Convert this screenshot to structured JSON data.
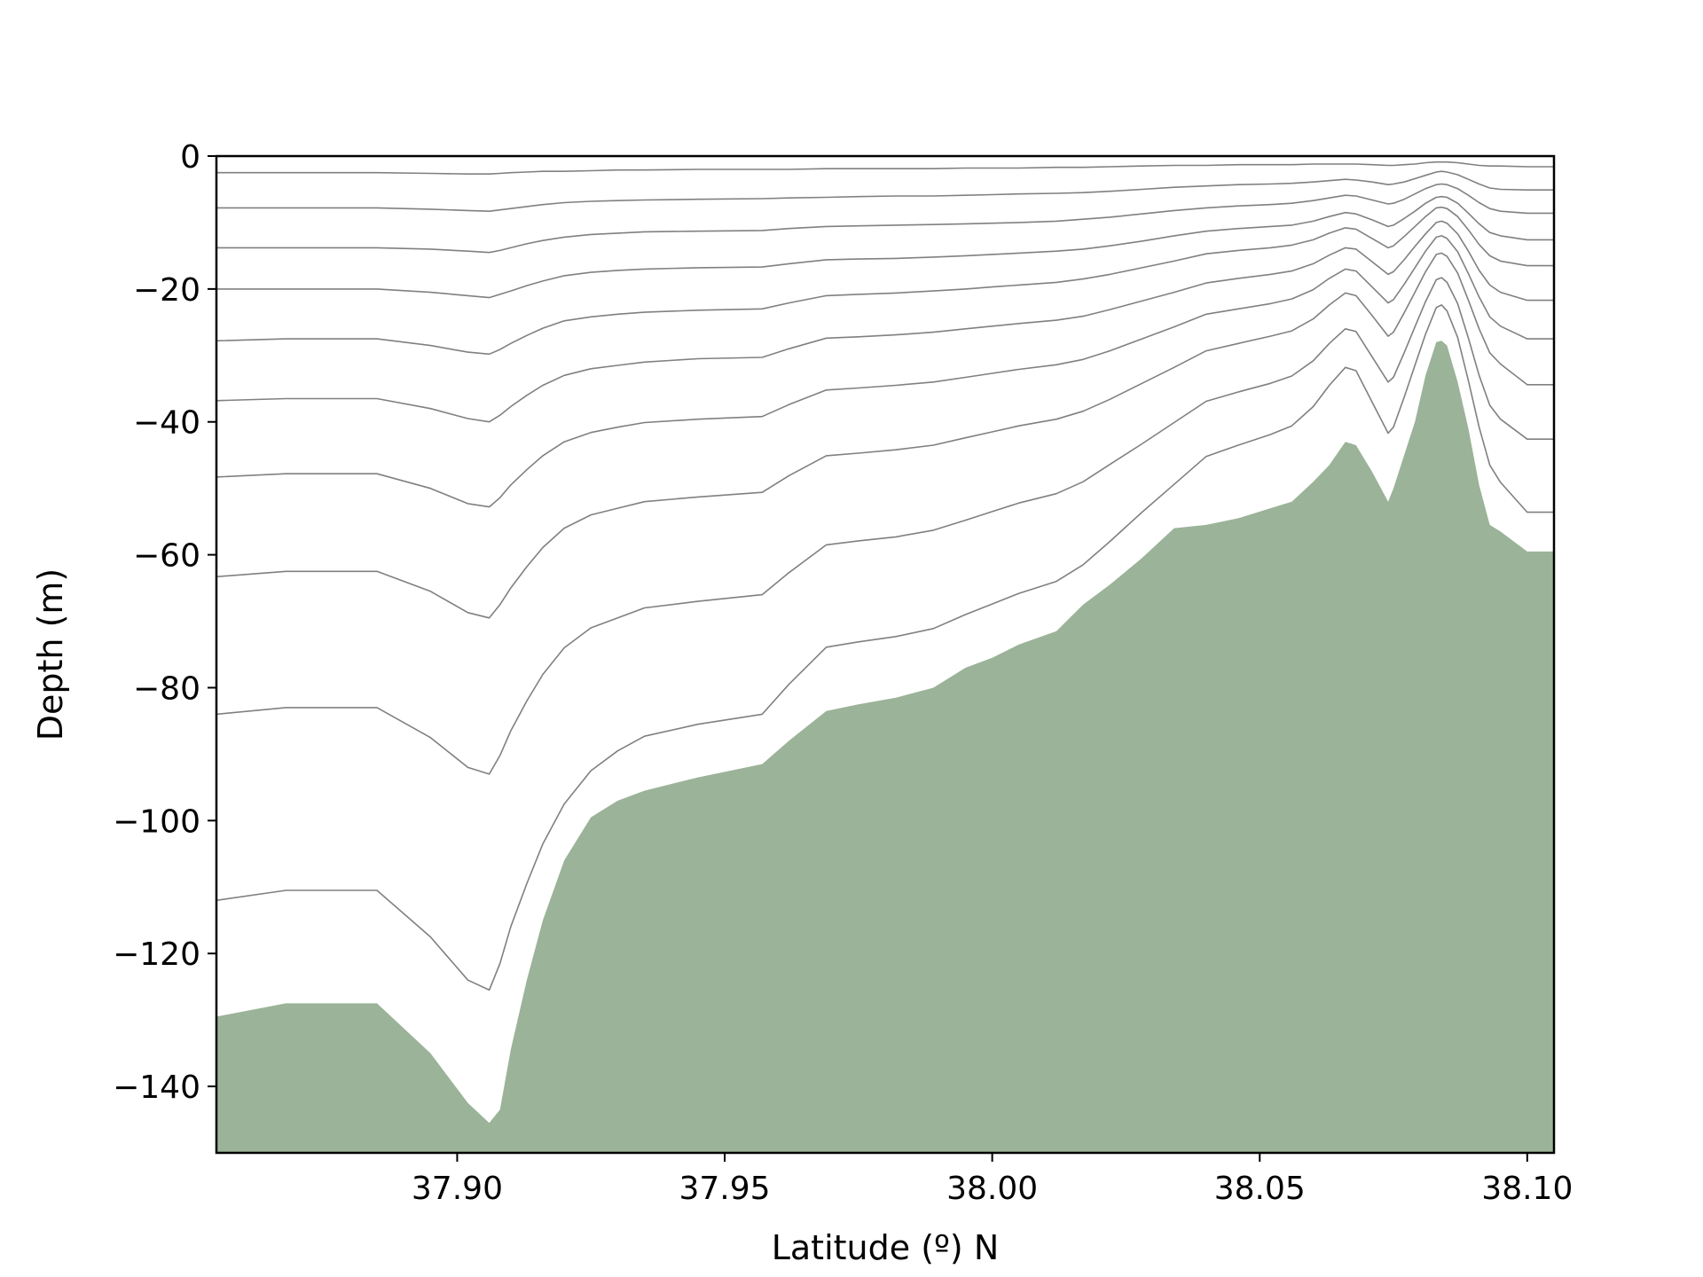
{
  "chart_data": {
    "type": "area",
    "title": "",
    "xlabel": "Latitude (º) N",
    "ylabel": "Depth (m)",
    "xlim": [
      37.855,
      38.105
    ],
    "ylim": [
      -150,
      0
    ],
    "x_ticks": [
      37.9,
      37.95,
      38.0,
      38.05,
      38.1
    ],
    "x_tick_labels": [
      "37.90",
      "37.95",
      "38.00",
      "38.05",
      "38.10"
    ],
    "y_ticks": [
      0,
      -20,
      -40,
      -60,
      -80,
      -100,
      -120,
      -140
    ],
    "y_tick_labels": [
      "0",
      "−20",
      "−40",
      "−60",
      "−80",
      "−100",
      "−120",
      "−140"
    ],
    "grid": false,
    "colors": {
      "bathymetry_fill": "#9bb398",
      "layer_lines": "#808080",
      "axes": "#000000"
    },
    "x": [
      37.855,
      37.868,
      37.885,
      37.895,
      37.902,
      37.906,
      37.908,
      37.91,
      37.913,
      37.916,
      37.92,
      37.925,
      37.93,
      37.935,
      37.945,
      37.957,
      37.962,
      37.969,
      37.975,
      37.982,
      37.989,
      37.995,
      38.0,
      38.005,
      38.012,
      38.017,
      38.022,
      38.028,
      38.034,
      38.04,
      38.046,
      38.052,
      38.056,
      38.06,
      38.063,
      38.066,
      38.068,
      38.071,
      38.074,
      38.075,
      38.077,
      38.079,
      38.081,
      38.083,
      38.084,
      38.085,
      38.087,
      38.089,
      38.091,
      38.093,
      38.095,
      38.1,
      38.105
    ],
    "bathymetry": [
      -129.5,
      -127.5,
      -127.5,
      -135.0,
      -142.5,
      -145.5,
      -143.5,
      -134.5,
      -124.0,
      -115.0,
      -106.0,
      -99.5,
      -97.0,
      -95.5,
      -93.5,
      -91.5,
      -88.0,
      -83.5,
      -82.5,
      -81.5,
      -80.0,
      -77.0,
      -75.5,
      -73.5,
      -71.5,
      -67.5,
      -64.5,
      -60.5,
      -56.0,
      -55.5,
      -54.5,
      -53.0,
      -52.0,
      -49.0,
      -46.5,
      -43.0,
      -43.5,
      -47.5,
      -52.0,
      -50.0,
      -45.0,
      -40.0,
      -33.0,
      -28.0,
      -27.8,
      -28.5,
      -34.0,
      -41.0,
      -49.5,
      -55.5,
      -56.5,
      -59.5,
      -59.5
    ],
    "series": [
      {
        "values": [
          -2.5,
          -2.5,
          -2.5,
          -2.6,
          -2.7,
          -2.7,
          -2.6,
          -2.5,
          -2.4,
          -2.3,
          -2.3,
          -2.2,
          -2.1,
          -2.1,
          -2.0,
          -2.0,
          -2.0,
          -1.9,
          -1.9,
          -1.9,
          -1.9,
          -1.8,
          -1.8,
          -1.8,
          -1.7,
          -1.7,
          -1.6,
          -1.5,
          -1.4,
          -1.4,
          -1.3,
          -1.3,
          -1.3,
          -1.2,
          -1.2,
          -1.2,
          -1.2,
          -1.3,
          -1.4,
          -1.4,
          -1.3,
          -1.2,
          -1.0,
          -0.9,
          -0.9,
          -0.9,
          -1.0,
          -1.2,
          -1.4,
          -1.5,
          -1.5,
          -1.6,
          -1.6
        ]
      },
      {
        "values": [
          -7.8,
          -7.8,
          -7.8,
          -8.0,
          -8.2,
          -8.3,
          -8.1,
          -7.9,
          -7.6,
          -7.3,
          -7.0,
          -6.8,
          -6.7,
          -6.6,
          -6.5,
          -6.4,
          -6.3,
          -6.2,
          -6.1,
          -6.0,
          -6.0,
          -5.9,
          -5.8,
          -5.7,
          -5.6,
          -5.5,
          -5.3,
          -5.0,
          -4.7,
          -4.5,
          -4.3,
          -4.2,
          -4.1,
          -3.9,
          -3.7,
          -3.5,
          -3.6,
          -3.9,
          -4.3,
          -4.2,
          -3.9,
          -3.4,
          -2.9,
          -2.4,
          -2.3,
          -2.4,
          -2.8,
          -3.5,
          -4.2,
          -4.8,
          -5.0,
          -5.1,
          -5.1
        ]
      },
      {
        "values": [
          -13.8,
          -13.8,
          -13.8,
          -14.0,
          -14.3,
          -14.5,
          -14.2,
          -13.8,
          -13.2,
          -12.7,
          -12.2,
          -11.8,
          -11.6,
          -11.4,
          -11.3,
          -11.2,
          -10.9,
          -10.6,
          -10.5,
          -10.4,
          -10.3,
          -10.2,
          -10.1,
          -10.0,
          -9.8,
          -9.5,
          -9.2,
          -8.7,
          -8.2,
          -7.8,
          -7.5,
          -7.3,
          -7.1,
          -6.7,
          -6.3,
          -5.9,
          -6.0,
          -6.6,
          -7.2,
          -7.1,
          -6.5,
          -5.7,
          -4.9,
          -4.3,
          -4.2,
          -4.3,
          -4.9,
          -5.9,
          -7.0,
          -7.9,
          -8.3,
          -8.6,
          -8.6
        ]
      },
      {
        "values": [
          -20.0,
          -20.0,
          -20.0,
          -20.5,
          -21.0,
          -21.3,
          -20.8,
          -20.3,
          -19.5,
          -18.8,
          -18.0,
          -17.5,
          -17.2,
          -17.0,
          -16.8,
          -16.7,
          -16.2,
          -15.6,
          -15.5,
          -15.4,
          -15.2,
          -15.0,
          -14.8,
          -14.6,
          -14.3,
          -14.0,
          -13.5,
          -12.8,
          -12.0,
          -11.3,
          -10.9,
          -10.6,
          -10.4,
          -9.8,
          -9.1,
          -8.5,
          -8.7,
          -9.6,
          -10.6,
          -10.4,
          -9.4,
          -8.3,
          -7.1,
          -6.2,
          -6.1,
          -6.2,
          -7.1,
          -8.6,
          -10.2,
          -11.5,
          -12.0,
          -12.6,
          -12.6
        ]
      },
      {
        "values": [
          -27.8,
          -27.5,
          -27.5,
          -28.5,
          -29.5,
          -29.8,
          -29.1,
          -28.2,
          -27.0,
          -25.9,
          -24.8,
          -24.2,
          -23.8,
          -23.5,
          -23.2,
          -23.0,
          -22.1,
          -21.0,
          -20.8,
          -20.6,
          -20.3,
          -20.0,
          -19.7,
          -19.4,
          -19.0,
          -18.5,
          -17.8,
          -16.8,
          -15.8,
          -14.7,
          -14.2,
          -13.8,
          -13.4,
          -12.6,
          -11.6,
          -10.8,
          -11.0,
          -12.4,
          -13.8,
          -13.5,
          -12.1,
          -10.6,
          -9.1,
          -7.8,
          -7.7,
          -7.9,
          -9.1,
          -11.1,
          -13.3,
          -15.0,
          -15.8,
          -16.5,
          -16.5
        ]
      },
      {
        "values": [
          -36.8,
          -36.5,
          -36.5,
          -38.0,
          -39.5,
          -40.0,
          -39.0,
          -37.7,
          -36.0,
          -34.5,
          -33.0,
          -32.0,
          -31.5,
          -31.0,
          -30.5,
          -30.3,
          -29.0,
          -27.4,
          -27.2,
          -26.9,
          -26.5,
          -26.0,
          -25.6,
          -25.2,
          -24.7,
          -24.1,
          -23.1,
          -21.8,
          -20.5,
          -19.1,
          -18.4,
          -17.8,
          -17.3,
          -16.2,
          -14.9,
          -13.8,
          -14.0,
          -15.9,
          -17.8,
          -17.4,
          -15.6,
          -13.6,
          -11.7,
          -10.0,
          -9.8,
          -10.1,
          -11.7,
          -14.3,
          -17.2,
          -19.4,
          -20.5,
          -21.7,
          -21.7
        ]
      },
      {
        "values": [
          -48.3,
          -47.8,
          -47.8,
          -50.0,
          -52.3,
          -52.8,
          -51.4,
          -49.5,
          -47.2,
          -45.1,
          -43.0,
          -41.6,
          -40.8,
          -40.1,
          -39.6,
          -39.2,
          -37.4,
          -35.2,
          -34.9,
          -34.5,
          -34.0,
          -33.3,
          -32.7,
          -32.1,
          -31.4,
          -30.6,
          -29.3,
          -27.5,
          -25.7,
          -23.8,
          -23.0,
          -22.2,
          -21.5,
          -20.1,
          -18.4,
          -17.0,
          -17.3,
          -19.7,
          -22.1,
          -21.6,
          -19.3,
          -16.8,
          -14.3,
          -12.2,
          -12.0,
          -12.4,
          -14.4,
          -17.7,
          -21.2,
          -24.2,
          -25.6,
          -27.5,
          -27.5
        ]
      },
      {
        "values": [
          -63.3,
          -62.5,
          -62.5,
          -65.5,
          -68.7,
          -69.5,
          -67.5,
          -65.0,
          -61.8,
          -58.9,
          -56.0,
          -54.0,
          -53.0,
          -52.0,
          -51.3,
          -50.6,
          -48.1,
          -45.1,
          -44.7,
          -44.2,
          -43.5,
          -42.4,
          -41.5,
          -40.6,
          -39.6,
          -38.4,
          -36.6,
          -34.2,
          -31.8,
          -29.3,
          -28.2,
          -27.1,
          -26.3,
          -24.5,
          -22.4,
          -20.6,
          -21.0,
          -24.0,
          -27.1,
          -26.5,
          -23.6,
          -20.5,
          -17.4,
          -14.8,
          -14.6,
          -15.1,
          -17.6,
          -21.7,
          -26.0,
          -29.6,
          -31.3,
          -34.4,
          -34.4
        ]
      },
      {
        "values": [
          -84.0,
          -83.0,
          -83.0,
          -87.5,
          -92.0,
          -93.0,
          -90.2,
          -86.5,
          -82.0,
          -78.0,
          -74.0,
          -71.0,
          -69.5,
          -68.0,
          -67.0,
          -66.0,
          -62.7,
          -58.5,
          -57.9,
          -57.3,
          -56.3,
          -54.8,
          -53.5,
          -52.2,
          -50.8,
          -49.0,
          -46.4,
          -43.3,
          -40.1,
          -36.9,
          -35.5,
          -34.2,
          -33.1,
          -30.8,
          -28.2,
          -26.0,
          -26.4,
          -30.2,
          -34.0,
          -33.3,
          -29.6,
          -25.7,
          -21.9,
          -18.6,
          -18.3,
          -19.0,
          -22.2,
          -27.4,
          -33.0,
          -37.5,
          -39.6,
          -42.6,
          -42.6
        ]
      },
      {
        "values": [
          -112.0,
          -110.5,
          -110.5,
          -117.5,
          -124.0,
          -125.5,
          -121.5,
          -116.0,
          -109.5,
          -103.5,
          -97.5,
          -92.5,
          -89.5,
          -87.3,
          -85.5,
          -84.0,
          -79.5,
          -73.9,
          -73.1,
          -72.3,
          -71.1,
          -69.0,
          -67.4,
          -65.8,
          -64.0,
          -61.5,
          -58.0,
          -53.6,
          -49.4,
          -45.2,
          -43.5,
          -41.9,
          -40.6,
          -37.7,
          -34.5,
          -31.8,
          -32.3,
          -37.0,
          -41.7,
          -40.8,
          -36.3,
          -31.5,
          -26.8,
          -22.8,
          -22.4,
          -23.3,
          -27.3,
          -33.8,
          -40.8,
          -46.5,
          -49.1,
          -53.6,
          -53.6
        ]
      }
    ]
  }
}
